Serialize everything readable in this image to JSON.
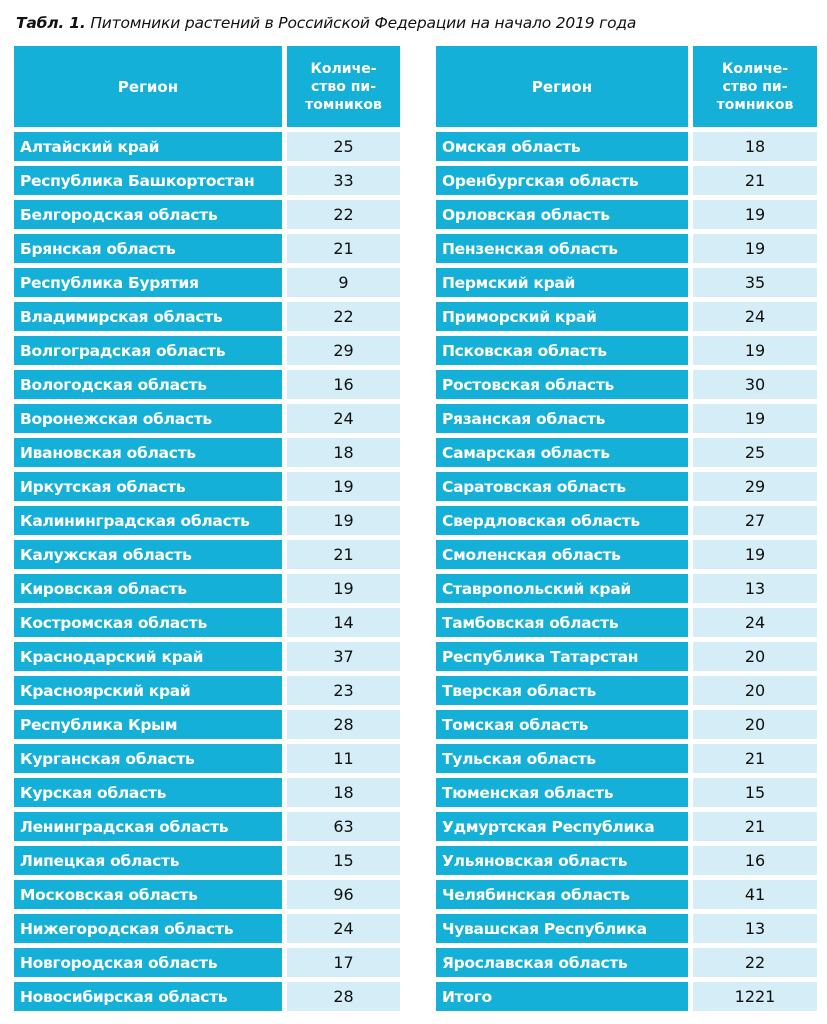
{
  "caption": {
    "label": "Табл. 1.",
    "title": "Питомники растений в Российской Федерации на начало 2019 года"
  },
  "headers": {
    "region": "Регион",
    "count": [
      "Количе-",
      "ство пи-",
      "томников"
    ]
  },
  "left_rows": [
    {
      "region": "Алтайский край",
      "count": "25"
    },
    {
      "region": "Республика Башкортостан",
      "count": "33"
    },
    {
      "region": "Белгородская область",
      "count": "22"
    },
    {
      "region": "Брянская область",
      "count": "21"
    },
    {
      "region": "Республика Бурятия",
      "count": "9"
    },
    {
      "region": "Владимирская область",
      "count": "22"
    },
    {
      "region": "Волгоградская область",
      "count": "29"
    },
    {
      "region": "Вологодская область",
      "count": "16"
    },
    {
      "region": "Воронежская область",
      "count": "24"
    },
    {
      "region": "Ивановская область",
      "count": "18"
    },
    {
      "region": "Иркутская область",
      "count": "19"
    },
    {
      "region": "Калининградская область",
      "count": "19"
    },
    {
      "region": "Калужская область",
      "count": "21"
    },
    {
      "region": "Кировская область",
      "count": "19"
    },
    {
      "region": "Костромская область",
      "count": "14"
    },
    {
      "region": "Краснодарский край",
      "count": "37"
    },
    {
      "region": "Красноярский край",
      "count": "23"
    },
    {
      "region": "Республика Крым",
      "count": "28"
    },
    {
      "region": "Курганская область",
      "count": "11"
    },
    {
      "region": "Курская область",
      "count": "18"
    },
    {
      "region": "Ленинградская область",
      "count": "63"
    },
    {
      "region": "Липецкая область",
      "count": "15"
    },
    {
      "region": "Московская область",
      "count": "96"
    },
    {
      "region": "Нижегородская область",
      "count": "24"
    },
    {
      "region": "Новгородская область",
      "count": "17"
    },
    {
      "region": "Новосибирская область",
      "count": "28"
    }
  ],
  "right_rows": [
    {
      "region": "Омская область",
      "count": "18"
    },
    {
      "region": "Оренбургская область",
      "count": "21"
    },
    {
      "region": "Орловская область",
      "count": "19"
    },
    {
      "region": "Пензенская область",
      "count": "19"
    },
    {
      "region": "Пермский край",
      "count": "35"
    },
    {
      "region": "Приморский край",
      "count": "24"
    },
    {
      "region": "Псковская область",
      "count": "19"
    },
    {
      "region": "Ростовская область",
      "count": "30"
    },
    {
      "region": "Рязанская область",
      "count": "19"
    },
    {
      "region": "Самарская область",
      "count": "25"
    },
    {
      "region": "Саратовская область",
      "count": "29"
    },
    {
      "region": "Свердловская область",
      "count": "27"
    },
    {
      "region": "Смоленская область",
      "count": "19"
    },
    {
      "region": "Ставропольский край",
      "count": "13"
    },
    {
      "region": "Тамбовская область",
      "count": "24"
    },
    {
      "region": "Республика Татарстан",
      "count": "20"
    },
    {
      "region": "Тверская область",
      "count": "20"
    },
    {
      "region": "Томская область",
      "count": "20"
    },
    {
      "region": "Тульская область",
      "count": "21"
    },
    {
      "region": "Тюменская область",
      "count": "15"
    },
    {
      "region": "Удмуртская Республика",
      "count": "21"
    },
    {
      "region": "Ульяновская область",
      "count": "16"
    },
    {
      "region": "Челябинская область",
      "count": "41"
    },
    {
      "region": "Чувашская Республика",
      "count": "13"
    },
    {
      "region": "Ярославская область",
      "count": "22"
    },
    {
      "region": "Итого",
      "count": "1221"
    }
  ],
  "colors": {
    "header_bg": "#15b0d8",
    "name_bg": "#15b0d8",
    "value_bg": "#d4edf6"
  }
}
